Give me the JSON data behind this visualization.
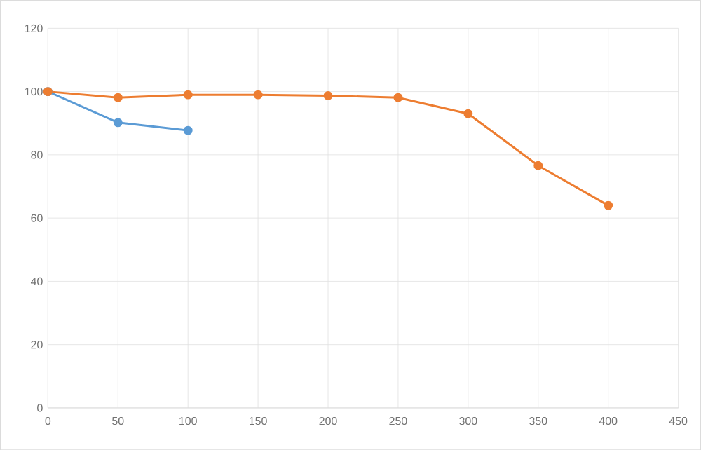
{
  "chart_data": {
    "type": "line",
    "marker": "circle",
    "grid": true,
    "xlim": [
      0,
      450
    ],
    "xticks": [
      0,
      50,
      100,
      150,
      200,
      250,
      300,
      350,
      400,
      450
    ],
    "ylim": [
      0,
      120
    ],
    "yticks": [
      0,
      20,
      40,
      60,
      80,
      100,
      120
    ],
    "series": [
      {
        "color": "#5b9bd5",
        "x": [
          0,
          50,
          100
        ],
        "values": [
          100,
          90.2,
          87.7
        ]
      },
      {
        "color": "#ed7d31",
        "x": [
          0,
          50,
          100,
          150,
          200,
          250,
          300,
          350,
          400
        ],
        "values": [
          100,
          98.1,
          99.0,
          99.0,
          98.7,
          98.1,
          93.0,
          76.6,
          64.0
        ]
      }
    ]
  }
}
